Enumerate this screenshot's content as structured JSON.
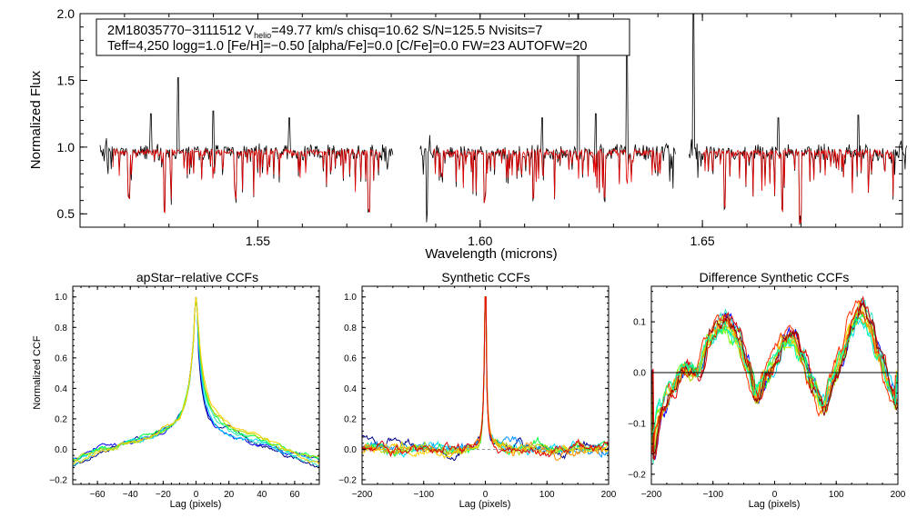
{
  "colors": {
    "background": "#ffffff",
    "axis": "#000000",
    "spectrum_observed": "#000000",
    "spectrum_model": "#e00000",
    "ccf_palette": [
      "#00008b",
      "#0000ff",
      "#0090ff",
      "#00d8ff",
      "#30e0c0",
      "#00ff40",
      "#80ff00",
      "#b0d800",
      "#ffd000",
      "#ff9000",
      "#ff3000",
      "#e00000"
    ]
  },
  "chart_data": [
    {
      "type": "line",
      "panel": "spectrum",
      "title": "",
      "xlabel": "Wavelength (microns)",
      "ylabel": "Normalized Flux",
      "xlim": [
        1.51,
        1.695
      ],
      "ylim": [
        0.4,
        2.0
      ],
      "xticks": [
        1.55,
        1.6,
        1.65
      ],
      "xtick_labels": [
        "1.55",
        "1.60",
        "1.65"
      ],
      "yticks": [
        0.5,
        1.0,
        1.5,
        2.0
      ],
      "ytick_labels": [
        "0.5",
        "1.0",
        "1.5",
        "2.0"
      ],
      "chips": [
        [
          1.5145,
          1.5805
        ],
        [
          1.5865,
          1.644
        ],
        [
          1.647,
          1.696
        ]
      ],
      "continuum": 0.96,
      "series": [
        {
          "name": "observed",
          "color": "#000000"
        },
        {
          "name": "synthetic",
          "color": "#e00000"
        }
      ],
      "emission_spikes": [
        [
          1.532,
          1.52
        ],
        [
          1.526,
          1.25
        ],
        [
          1.54,
          1.27
        ],
        [
          1.557,
          1.22
        ],
        [
          1.614,
          1.22
        ],
        [
          1.622,
          2.0
        ],
        [
          1.626,
          1.25
        ],
        [
          1.633,
          1.75
        ],
        [
          1.648,
          2.0
        ],
        [
          1.667,
          1.22
        ],
        [
          1.685,
          1.24
        ]
      ],
      "absorption_lines": [
        [
          1.521,
          0.62
        ],
        [
          1.529,
          0.52
        ],
        [
          1.545,
          0.63
        ],
        [
          1.575,
          0.52
        ],
        [
          1.588,
          0.48
        ],
        [
          1.601,
          0.6
        ],
        [
          1.612,
          0.6
        ],
        [
          1.628,
          0.61
        ],
        [
          1.655,
          0.55
        ],
        [
          1.672,
          0.45
        ],
        [
          1.668,
          0.52
        ]
      ],
      "info": {
        "line1_prefix": "2M18035770−3111512  V",
        "line1_sub": "helio",
        "line1_suffix": "=49.77 km/s  chisq=10.62  S/N=125.5  Nvisits=7",
        "line2": "Teff=4,250 logg=1.0 [Fe/H]=−0.50 [alpha/Fe]=0.0 [C/Fe]=0.0 FW=23 AUTOFW=20"
      }
    },
    {
      "type": "line",
      "panel": "ccf1",
      "title": "apStar−relative CCFs",
      "xlabel": "Lag (pixels)",
      "ylabel": "Normalized CCF",
      "xlim": [
        -75,
        75
      ],
      "ylim": [
        -0.23,
        1.07
      ],
      "xticks": [
        -60,
        -40,
        -20,
        0,
        20,
        40,
        60
      ],
      "xtick_labels": [
        "−60",
        "−40",
        "−20",
        "0",
        "20",
        "40",
        "60"
      ],
      "yticks": [
        -0.2,
        0.0,
        0.2,
        0.4,
        0.6,
        0.8,
        1.0
      ],
      "ytick_labels": [
        "−0.2",
        "0.0",
        "0.2",
        "0.4",
        "0.6",
        "0.8",
        "1.0"
      ],
      "n_series": 7,
      "series_colors": [
        "#00008b",
        "#0000ff",
        "#00d8ff",
        "#30e0c0",
        "#00ff40",
        "#b0d800",
        "#ffd000"
      ]
    },
    {
      "type": "line",
      "panel": "ccf2",
      "title": "Synthetic CCFs",
      "xlabel": "Lag (pixels)",
      "ylabel": "",
      "xlim": [
        -200,
        200
      ],
      "ylim": [
        -0.23,
        1.07
      ],
      "xticks": [
        -200,
        -100,
        0,
        100,
        200
      ],
      "xtick_labels": [
        "−200",
        "−100",
        "0",
        "100",
        "200"
      ],
      "yticks": [
        -0.2,
        0.0,
        0.2,
        0.4,
        0.6,
        0.8,
        1.0
      ],
      "ytick_labels": [
        "−0.2",
        "0.0",
        "0.2",
        "0.4",
        "0.6",
        "0.8",
        "1.0"
      ],
      "n_series": 8,
      "series_colors": [
        "#00008b",
        "#0090ff",
        "#00d8ff",
        "#00ff40",
        "#b0d800",
        "#ffd000",
        "#ff9000",
        "#e00000"
      ]
    },
    {
      "type": "line",
      "panel": "ccf3",
      "title": "Difference Synthetic CCFs",
      "xlabel": "Lag (pixels)",
      "ylabel": "",
      "xlim": [
        -200,
        200
      ],
      "ylim": [
        -0.22,
        0.17
      ],
      "xticks": [
        -200,
        -100,
        0,
        100,
        200
      ],
      "xtick_labels": [
        "−200",
        "−100",
        "0",
        "100",
        "200"
      ],
      "yticks": [
        -0.2,
        -0.1,
        0.0,
        0.1
      ],
      "ytick_labels": [
        "−0.2",
        "−0.1",
        "0.0",
        "0.1"
      ],
      "n_series": 12,
      "zero_line": true,
      "series_colors": [
        "#0000ff",
        "#00d8ff",
        "#30e0c0",
        "#00ff40",
        "#80ff00",
        "#b0d800",
        "#ffd000",
        "#ff9000",
        "#ff3000",
        "#e00000",
        "#8b0000",
        "#00ffa0"
      ]
    }
  ]
}
